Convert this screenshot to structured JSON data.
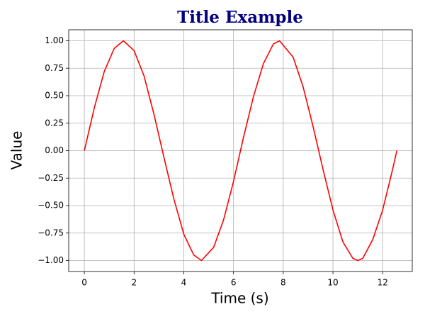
{
  "chart_data": {
    "type": "line",
    "title": "Title Example",
    "x_label": "Time (s)",
    "y_label": "Value",
    "x": [
      0,
      0.4,
      0.8,
      1.2,
      1.57,
      2.0,
      2.4,
      2.8,
      3.2,
      3.6,
      4.0,
      4.4,
      4.71,
      5.2,
      5.6,
      6.0,
      6.4,
      6.8,
      7.2,
      7.6,
      7.85,
      8.4,
      8.8,
      9.2,
      9.6,
      10.0,
      10.4,
      10.8,
      11.0,
      11.2,
      11.6,
      12.0,
      12.4,
      12.57
    ],
    "values": [
      0,
      0.39,
      0.72,
      0.93,
      1.0,
      0.91,
      0.68,
      0.33,
      -0.06,
      -0.44,
      -0.76,
      -0.95,
      -1.0,
      -0.88,
      -0.63,
      -0.28,
      0.12,
      0.49,
      0.79,
      0.97,
      1.0,
      0.85,
      0.58,
      0.22,
      -0.17,
      -0.54,
      -0.83,
      -0.98,
      -1.0,
      -0.98,
      -0.81,
      -0.54,
      -0.17,
      0
    ],
    "color": "#ff0000",
    "xlim": [
      -0.63,
      13.19
    ],
    "xticks": [
      0,
      2,
      4,
      6,
      8,
      10,
      12
    ],
    "ylim": [
      -1.1,
      1.1
    ],
    "yticks": [
      {
        "value": -1,
        "label": "−1.00"
      },
      {
        "value": -0.75,
        "label": "−0.75"
      },
      {
        "value": -0.5,
        "label": "−0.50"
      },
      {
        "value": -0.25,
        "label": "−0.25"
      },
      {
        "value": 0,
        "label": "0.00"
      },
      {
        "value": 0.25,
        "label": "0.25"
      },
      {
        "value": 0.5,
        "label": "0.50"
      },
      {
        "value": 0.75,
        "label": "0.75"
      },
      {
        "value": 1,
        "label": "1.00"
      }
    ],
    "grid": true
  }
}
